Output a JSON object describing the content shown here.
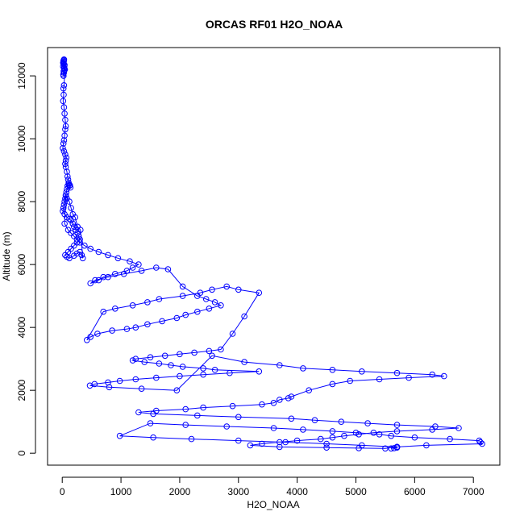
{
  "chart_data": {
    "type": "scatter",
    "title": "ORCAS RF01 H2O_NOAA",
    "xlabel": "H2O_NOAA",
    "ylabel": "Altitude (m)",
    "xlim": [
      -250,
      7450
    ],
    "ylim": [
      -380,
      12900
    ],
    "x_ticks": [
      0,
      1000,
      2000,
      3000,
      4000,
      5000,
      6000,
      7000
    ],
    "y_ticks": [
      0,
      2000,
      4000,
      6000,
      8000,
      10000,
      12000
    ],
    "grid": false,
    "legend": "none",
    "series": [
      {
        "marker": "open-circle",
        "line": true,
        "x": [
          30,
          25,
          20,
          15,
          35,
          25,
          18,
          22,
          28,
          32,
          40,
          30,
          20,
          15,
          25,
          35,
          45,
          30,
          20,
          25,
          15,
          30,
          40,
          50,
          60,
          50,
          40,
          30,
          20,
          10,
          30,
          50,
          70,
          60,
          50,
          60,
          80,
          90,
          100,
          110,
          120,
          140,
          130,
          110,
          90,
          80,
          70,
          60,
          50,
          40,
          30,
          20,
          10,
          40,
          80,
          120,
          150,
          180,
          200,
          230,
          260,
          280,
          300,
          250,
          200,
          150,
          100,
          50,
          80,
          120,
          200,
          250,
          300,
          330,
          350,
          310,
          260,
          220,
          180,
          150,
          120,
          80,
          60,
          40,
          100,
          150,
          200,
          250,
          300,
          380,
          480,
          620,
          780,
          950,
          1150,
          1300,
          1200,
          1100,
          900,
          700,
          620,
          480,
          560,
          780,
          1050,
          1350,
          1600,
          1800,
          2050,
          2300,
          2450,
          2600,
          2700,
          2500,
          2300,
          2100,
          1950,
          1700,
          1450,
          1250,
          1100,
          850,
          600,
          480,
          420,
          700,
          900,
          1200,
          1450,
          1650,
          2050,
          2350,
          2550,
          2800,
          3000,
          3350,
          3100,
          2900,
          2700,
          2500,
          2250,
          2000,
          1750,
          1500,
          1250,
          1200,
          1400,
          1650,
          1850,
          2050,
          2400,
          2600,
          3350,
          2850,
          2400,
          2000,
          1600,
          1250,
          980,
          780,
          550,
          470,
          800,
          1350,
          1950,
          2550,
          3100,
          3700,
          4100,
          4600,
          5100,
          5700,
          6300,
          6500,
          5900,
          5400,
          4900,
          4600,
          4200,
          3900,
          3850,
          3700,
          3600,
          3400,
          2900,
          2400,
          2100,
          1600,
          1300,
          1550,
          2300,
          3000,
          3900,
          4300,
          4750,
          5200,
          5700,
          6350,
          6750,
          6300,
          5700,
          5300,
          5050,
          4800,
          4600,
          4400,
          4000,
          3700,
          3400,
          3200,
          3700,
          4500,
          5050,
          5500,
          5700,
          6200,
          7150,
          7120,
          7100,
          6600,
          6000,
          5600,
          5400,
          5000,
          4600,
          4100,
          3600,
          2800,
          2100,
          1500,
          980,
          1550,
          2200,
          3000,
          3800,
          4500,
          5100,
          5700,
          5600,
          5700,
          5650,
          5700
        ],
        "y": [
          12500,
          12450,
          12400,
          12300,
          12200,
          12150,
          12050,
          12000,
          12100,
          12250,
          12350,
          12520,
          12480,
          12420,
          12380,
          12300,
          12200,
          11700,
          11600,
          11400,
          11200,
          11000,
          10800,
          10600,
          10400,
          10300,
          10100,
          9950,
          9850,
          9700,
          9600,
          9500,
          9400,
          9300,
          9200,
          9100,
          8950,
          8800,
          8700,
          8600,
          8500,
          8450,
          8520,
          8550,
          8500,
          8400,
          8300,
          8200,
          8100,
          8000,
          7900,
          7800,
          7700,
          7600,
          7500,
          7450,
          7400,
          7300,
          7200,
          7100,
          7000,
          6900,
          6800,
          6700,
          6600,
          6500,
          6400,
          6300,
          6250,
          6200,
          6280,
          6350,
          6400,
          6300,
          6200,
          7100,
          7200,
          7500,
          7600,
          7800,
          8000,
          8100,
          8200,
          7300,
          7100,
          7000,
          6900,
          6800,
          6700,
          6600,
          6500,
          6400,
          6300,
          6200,
          6100,
          6000,
          5900,
          5800,
          5700,
          5600,
          5500,
          5400,
          5500,
          5600,
          5700,
          5800,
          5900,
          5850,
          5300,
          5000,
          4900,
          4800,
          4700,
          4600,
          4500,
          4400,
          4300,
          4200,
          4100,
          4000,
          3950,
          3900,
          3800,
          3700,
          3600,
          4500,
          4600,
          4700,
          4800,
          4900,
          5000,
          5100,
          5200,
          5300,
          5200,
          5100,
          4350,
          3800,
          3300,
          3250,
          3200,
          3150,
          3100,
          3050,
          3000,
          2950,
          2900,
          2850,
          2800,
          2750,
          2700,
          2650,
          2600,
          2550,
          2500,
          2450,
          2400,
          2350,
          2300,
          2250,
          2200,
          2150,
          2100,
          2050,
          2000,
          3100,
          2900,
          2800,
          2700,
          2650,
          2600,
          2550,
          2500,
          2450,
          2400,
          2350,
          2300,
          2200,
          2000,
          1800,
          1750,
          1700,
          1600,
          1550,
          1500,
          1450,
          1400,
          1350,
          1300,
          1250,
          1200,
          1150,
          1100,
          1050,
          1000,
          950,
          900,
          850,
          800,
          750,
          700,
          650,
          600,
          550,
          500,
          450,
          400,
          350,
          300,
          250,
          200,
          180,
          160,
          150,
          200,
          250,
          300,
          350,
          400,
          450,
          500,
          550,
          600,
          650,
          700,
          750,
          800,
          850,
          900,
          950,
          550,
          500,
          450,
          400,
          350,
          300,
          250,
          200,
          150,
          180,
          160,
          200
        ]
      }
    ]
  },
  "colors": {
    "series": "#0000ff",
    "axis": "#000000",
    "background": "#ffffff"
  }
}
